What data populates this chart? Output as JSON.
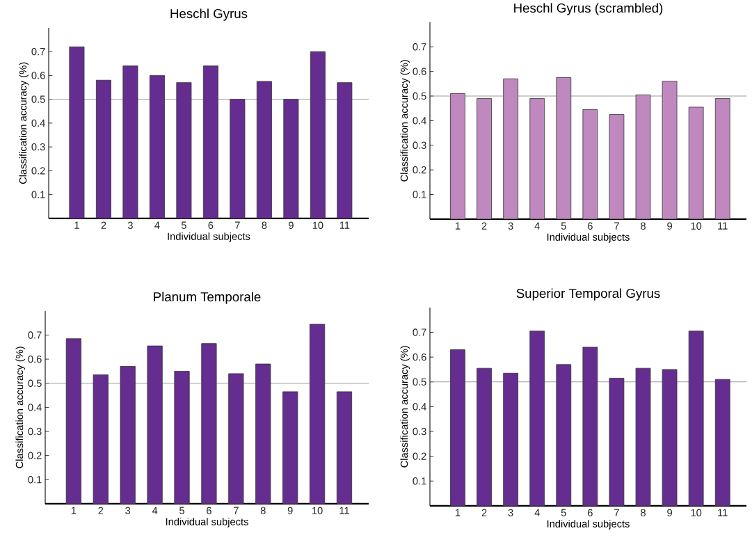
{
  "chart_data": [
    {
      "type": "bar",
      "title": "Heschl Gyrus",
      "xlabel": "Individual subjects",
      "ylabel": "Classification accuracy (%)",
      "categories": [
        "1",
        "2",
        "3",
        "4",
        "5",
        "6",
        "7",
        "8",
        "9",
        "10",
        "11"
      ],
      "series": [
        {
          "color": "#652d90",
          "values": [
            0.72,
            0.58,
            0.64,
            0.6,
            0.57,
            0.64,
            0.5,
            0.575,
            0.5,
            0.7,
            0.57
          ]
        }
      ],
      "ylim": [
        0,
        0.8
      ],
      "yticks": [
        0.1,
        0.2,
        0.3,
        0.4,
        0.5,
        0.6,
        0.7
      ],
      "ref_lines": [
        {
          "axis": "y",
          "value": 0.5,
          "color": "#808080"
        }
      ]
    },
    {
      "type": "bar",
      "title": "Heschl Gyrus (scrambled)",
      "xlabel": "Individual subjects",
      "ylabel": "Classification accuracy (%)",
      "categories": [
        "1",
        "2",
        "3",
        "4",
        "5",
        "6",
        "7",
        "8",
        "9",
        "10",
        "11"
      ],
      "series": [
        {
          "color": "#bf88bf",
          "values": [
            0.51,
            0.49,
            0.57,
            0.49,
            0.575,
            0.445,
            0.425,
            0.505,
            0.56,
            0.455,
            0.49
          ]
        }
      ],
      "ylim": [
        0,
        0.8
      ],
      "yticks": [
        0.1,
        0.2,
        0.3,
        0.4,
        0.5,
        0.6,
        0.7
      ],
      "ref_lines": [
        {
          "axis": "y",
          "value": 0.5,
          "color": "#808080"
        }
      ]
    },
    {
      "type": "bar",
      "title": "Planum Temporale",
      "xlabel": "Individual subjects",
      "ylabel": "Classification accuracy (%)",
      "categories": [
        "1",
        "2",
        "3",
        "4",
        "5",
        "6",
        "7",
        "8",
        "9",
        "10",
        "11"
      ],
      "series": [
        {
          "color": "#652d90",
          "values": [
            0.685,
            0.535,
            0.57,
            0.655,
            0.55,
            0.665,
            0.54,
            0.58,
            0.465,
            0.745,
            0.465
          ]
        }
      ],
      "ylim": [
        0,
        0.8
      ],
      "yticks": [
        0.1,
        0.2,
        0.3,
        0.4,
        0.5,
        0.6,
        0.7
      ],
      "ref_lines": [
        {
          "axis": "y",
          "value": 0.5,
          "color": "#808080"
        }
      ]
    },
    {
      "type": "bar",
      "title": "Superior Temporal Gyrus",
      "xlabel": "Individual subjects",
      "ylabel": "Classification accuracy (%)",
      "categories": [
        "1",
        "2",
        "3",
        "4",
        "5",
        "6",
        "7",
        "8",
        "9",
        "10",
        "11"
      ],
      "series": [
        {
          "color": "#652d90",
          "values": [
            0.63,
            0.555,
            0.535,
            0.705,
            0.57,
            0.64,
            0.515,
            0.555,
            0.55,
            0.705,
            0.51
          ]
        }
      ],
      "ylim": [
        0,
        0.8
      ],
      "yticks": [
        0.1,
        0.2,
        0.3,
        0.4,
        0.5,
        0.6,
        0.7
      ],
      "ref_lines": [
        {
          "axis": "y",
          "value": 0.5,
          "color": "#808080"
        }
      ]
    }
  ]
}
